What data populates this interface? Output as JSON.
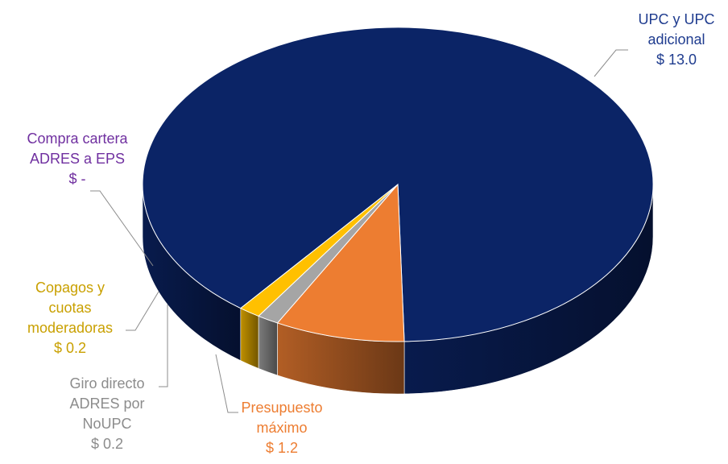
{
  "chart_data": {
    "type": "pie",
    "style": "3d",
    "unit": "$",
    "slices": [
      {
        "name_lines": [
          "UPC y UPC",
          "adicional"
        ],
        "value": 13.0,
        "value_label": "$ 13.0",
        "color": "#0B2466",
        "label_color": "#1F3C8F"
      },
      {
        "name_lines": [
          "Presupuesto",
          "máximo"
        ],
        "value": 1.2,
        "value_label": "$ 1.2",
        "color": "#ED7D31",
        "label_color": "#ED7D31"
      },
      {
        "name_lines": [
          "Giro directo",
          "ADRES por",
          "NoUPC"
        ],
        "value": 0.2,
        "value_label": "$ 0.2",
        "color": "#A5A5A5",
        "label_color": "#8C8C8C"
      },
      {
        "name_lines": [
          "Copagos y",
          "cuotas",
          "moderadoras"
        ],
        "value": 0.2,
        "value_label": "$ 0.2",
        "color": "#FFC000",
        "label_color": "#C9A000"
      },
      {
        "name_lines": [
          "Compra cartera",
          "ADRES a EPS"
        ],
        "value": 0,
        "value_label": "$ -",
        "color": "#7030A0",
        "label_color": "#7030A0"
      }
    ]
  }
}
